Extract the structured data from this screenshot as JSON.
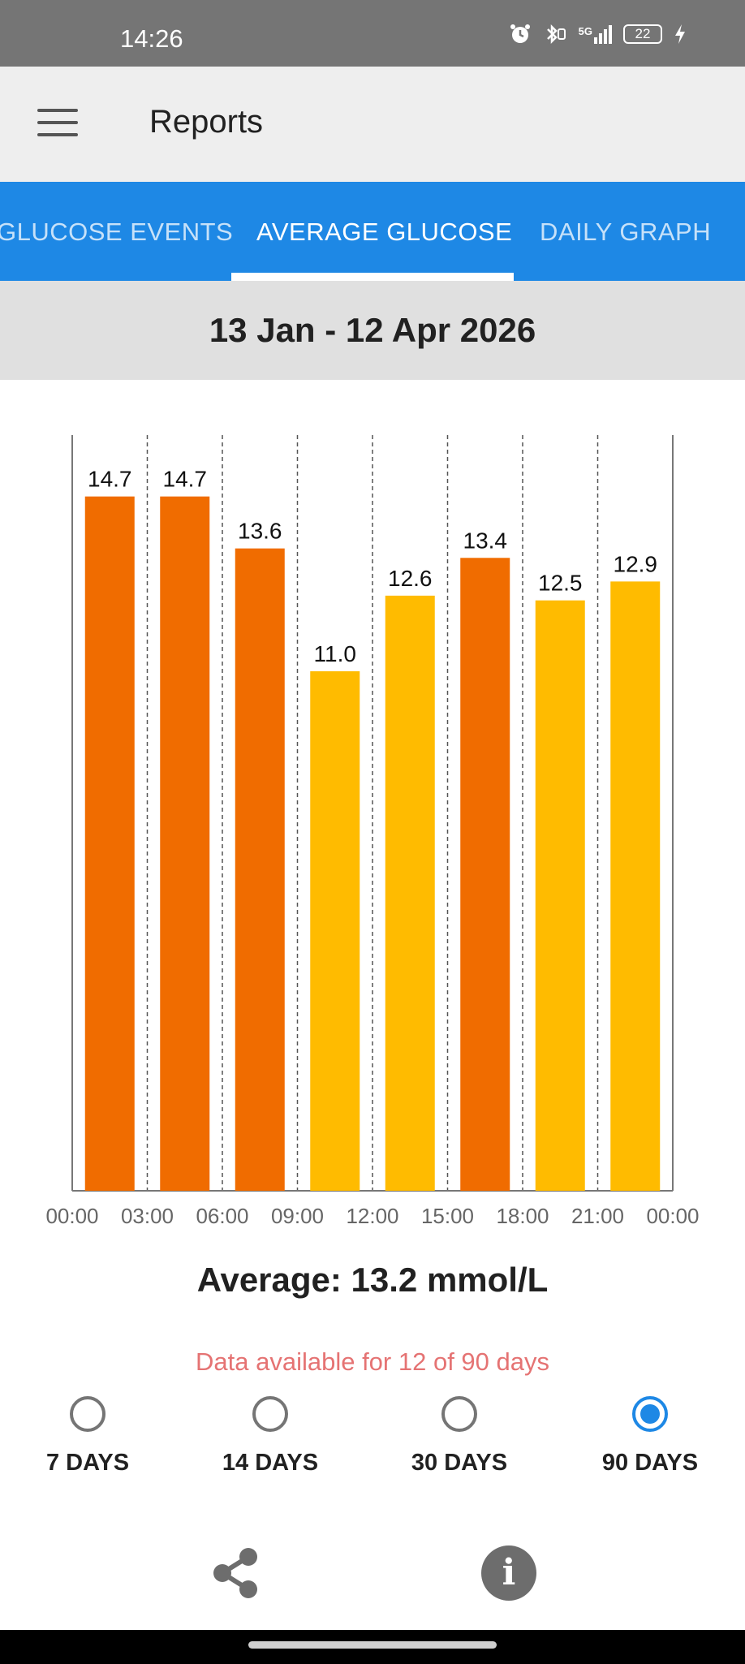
{
  "status_bar": {
    "time": "14:26",
    "signal_label": "5G",
    "battery": "22",
    "icons": [
      "alarm-icon",
      "bluetooth-icon",
      "signal-icon",
      "battery-icon",
      "charging-icon"
    ]
  },
  "app_bar": {
    "title": "Reports",
    "menu_icon": "menu-icon"
  },
  "tabs": [
    {
      "label": "GLUCOSE EVENTS",
      "active": false
    },
    {
      "label": "AVERAGE GLUCOSE",
      "active": true
    },
    {
      "label": "DAILY GRAPH",
      "active": false
    }
  ],
  "date_range": "13 Jan - 12 Apr 2026",
  "chart_data": {
    "type": "bar",
    "x_ticks": [
      "00:00",
      "03:00",
      "06:00",
      "09:00",
      "12:00",
      "15:00",
      "18:00",
      "21:00",
      "00:00"
    ],
    "values": [
      14.7,
      14.7,
      13.6,
      11.0,
      12.6,
      13.4,
      12.5,
      12.9
    ],
    "value_labels": [
      "14.7",
      "14.7",
      "13.6",
      "11.0",
      "12.6",
      "13.4",
      "12.5",
      "12.9"
    ],
    "bar_colors": [
      "#f06c00",
      "#f06c00",
      "#f06c00",
      "#ffbb00",
      "#ffbb00",
      "#f06c00",
      "#ffbb00",
      "#ffbb00"
    ],
    "ylim": [
      0,
      16
    ],
    "grid": "vertical-dashed"
  },
  "average_text": "Average: 13.2 mmol/L",
  "availability_text": "Data available for 12 of 90 days",
  "periods": [
    {
      "label": "7 DAYS",
      "selected": false
    },
    {
      "label": "14 DAYS",
      "selected": false
    },
    {
      "label": "30 DAYS",
      "selected": false
    },
    {
      "label": "90 DAYS",
      "selected": true
    }
  ],
  "bottom_actions": {
    "share_icon": "share-icon",
    "info_icon": "info-icon",
    "info_glyph": "i"
  },
  "colors": {
    "accent": "#1e88e5",
    "high": "#f06c00",
    "elevated": "#ffbb00",
    "availability": "#e57373"
  }
}
